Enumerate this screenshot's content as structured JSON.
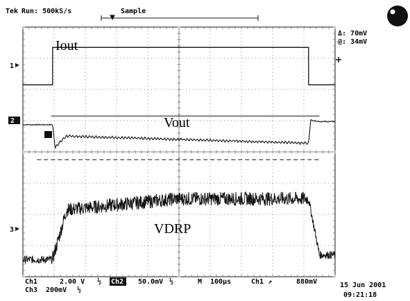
{
  "header": {
    "brand": "Tek",
    "run_status": "Run: 500kS/s",
    "acq_mode": "Sample"
  },
  "cursor_readout": {
    "delta": "Δ: 70mV",
    "at": "@: 34mV"
  },
  "channel_markers": {
    "ch1": "1",
    "ch2": "2",
    "ch3": "3"
  },
  "footer": {
    "ch1_label": "Ch1",
    "ch1_scale": "2.00 V",
    "ch1_coupling": "½",
    "ch2_label": "Ch2",
    "ch2_scale": "50.0mV",
    "ch2_coupling": "½",
    "timebase_label": "M",
    "timebase": "100µs",
    "trigger_source": "Ch1",
    "trigger_slope": "↗",
    "trigger_level": "880mV",
    "ch3_label": "Ch3",
    "ch3_scale": "200mV",
    "ch3_coupling": "½",
    "date": "15 Jun 2001",
    "time": "09:21:18"
  },
  "colors": {
    "trace": "#111111",
    "grid": "#8a8a8a",
    "background": "#ffffff"
  },
  "chart_data": {
    "type": "line",
    "title": "",
    "grid": true,
    "x_divisions": 10,
    "y_divisions": 8,
    "time_per_div": "100µs",
    "series": [
      {
        "name": "Iout",
        "channel": 1,
        "unit": "V",
        "volts_per_div": 2.0,
        "ground_division_from_top": 1.85,
        "shape": "pulse",
        "t_on_div": 0.95,
        "t_off_div": 9.15,
        "low_div": 0.0,
        "high_div": 1.2
      },
      {
        "name": "Vout",
        "channel": 2,
        "unit": "mV",
        "volts_per_div": 50.0,
        "ground_division_from_top": 3.25,
        "shape": "droop",
        "t_on_div": 0.95,
        "t_off_div": 9.15,
        "baseline_div": 0.12,
        "dip_div": -0.6,
        "settle_div": -0.3,
        "ripple_div": 0.03
      },
      {
        "name": "VDRP",
        "channel": 3,
        "unit": "mV",
        "volts_per_div": 200.0,
        "ground_division_from_top": 6.55,
        "shape": "ramp-noisy",
        "t_on_div": 0.95,
        "t_off_div": 9.15,
        "low_div": -0.9,
        "start_high_div": 0.65,
        "end_high_div": 1.05,
        "noise_div": 0.22
      }
    ],
    "cursors": {
      "type": "horizontal",
      "delta_mV": 70,
      "at_mV": 34,
      "levels_div_from_top": [
        2.85,
        4.25
      ]
    }
  }
}
